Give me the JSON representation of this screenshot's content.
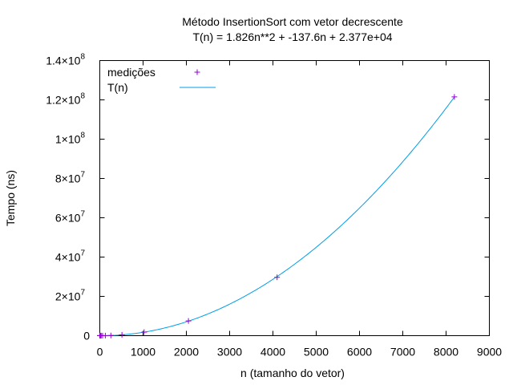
{
  "chart_data": {
    "type": "scatter",
    "title_line1": "Método InsertionSort com vetor decrescente",
    "title_line2": "T(n) = 1.826n**2 + -137.6n + 2.377e+04",
    "xlabel": "n (tamanho do vetor)",
    "ylabel": "Tempo (ns)",
    "xlim": [
      0,
      9000
    ],
    "ylim": [
      0,
      140000000
    ],
    "x_ticks": [
      0,
      1000,
      2000,
      3000,
      4000,
      5000,
      6000,
      7000,
      8000,
      9000
    ],
    "y_ticks": [
      {
        "value": 0,
        "mantissa": "0",
        "exponent": ""
      },
      {
        "value": 20000000,
        "mantissa": "2×10",
        "exponent": "7"
      },
      {
        "value": 40000000,
        "mantissa": "4×10",
        "exponent": "7"
      },
      {
        "value": 60000000,
        "mantissa": "6×10",
        "exponent": "7"
      },
      {
        "value": 80000000,
        "mantissa": "8×10",
        "exponent": "7"
      },
      {
        "value": 100000000,
        "mantissa": "1×10",
        "exponent": "8"
      },
      {
        "value": 120000000,
        "mantissa": "1.2×10",
        "exponent": "8"
      },
      {
        "value": 140000000,
        "mantissa": "1.4×10",
        "exponent": "8"
      }
    ],
    "legend_position": "top-left",
    "series": [
      {
        "name": "medições",
        "kind": "points",
        "color": "#9400d3",
        "x": [
          1,
          2,
          4,
          8,
          16,
          32,
          64,
          128,
          256,
          512,
          1024,
          2048,
          4096,
          8192
        ],
        "y": [
          24000,
          24000,
          24000,
          24000,
          24000,
          25000,
          28000,
          36000,
          100000,
          450000,
          1800000,
          7500000,
          29700000,
          121500000
        ]
      },
      {
        "name": "T(n)",
        "kind": "line",
        "color": "#009ee8",
        "fit": {
          "a": 1.826,
          "b": -137.6,
          "c": 23770
        }
      }
    ]
  }
}
